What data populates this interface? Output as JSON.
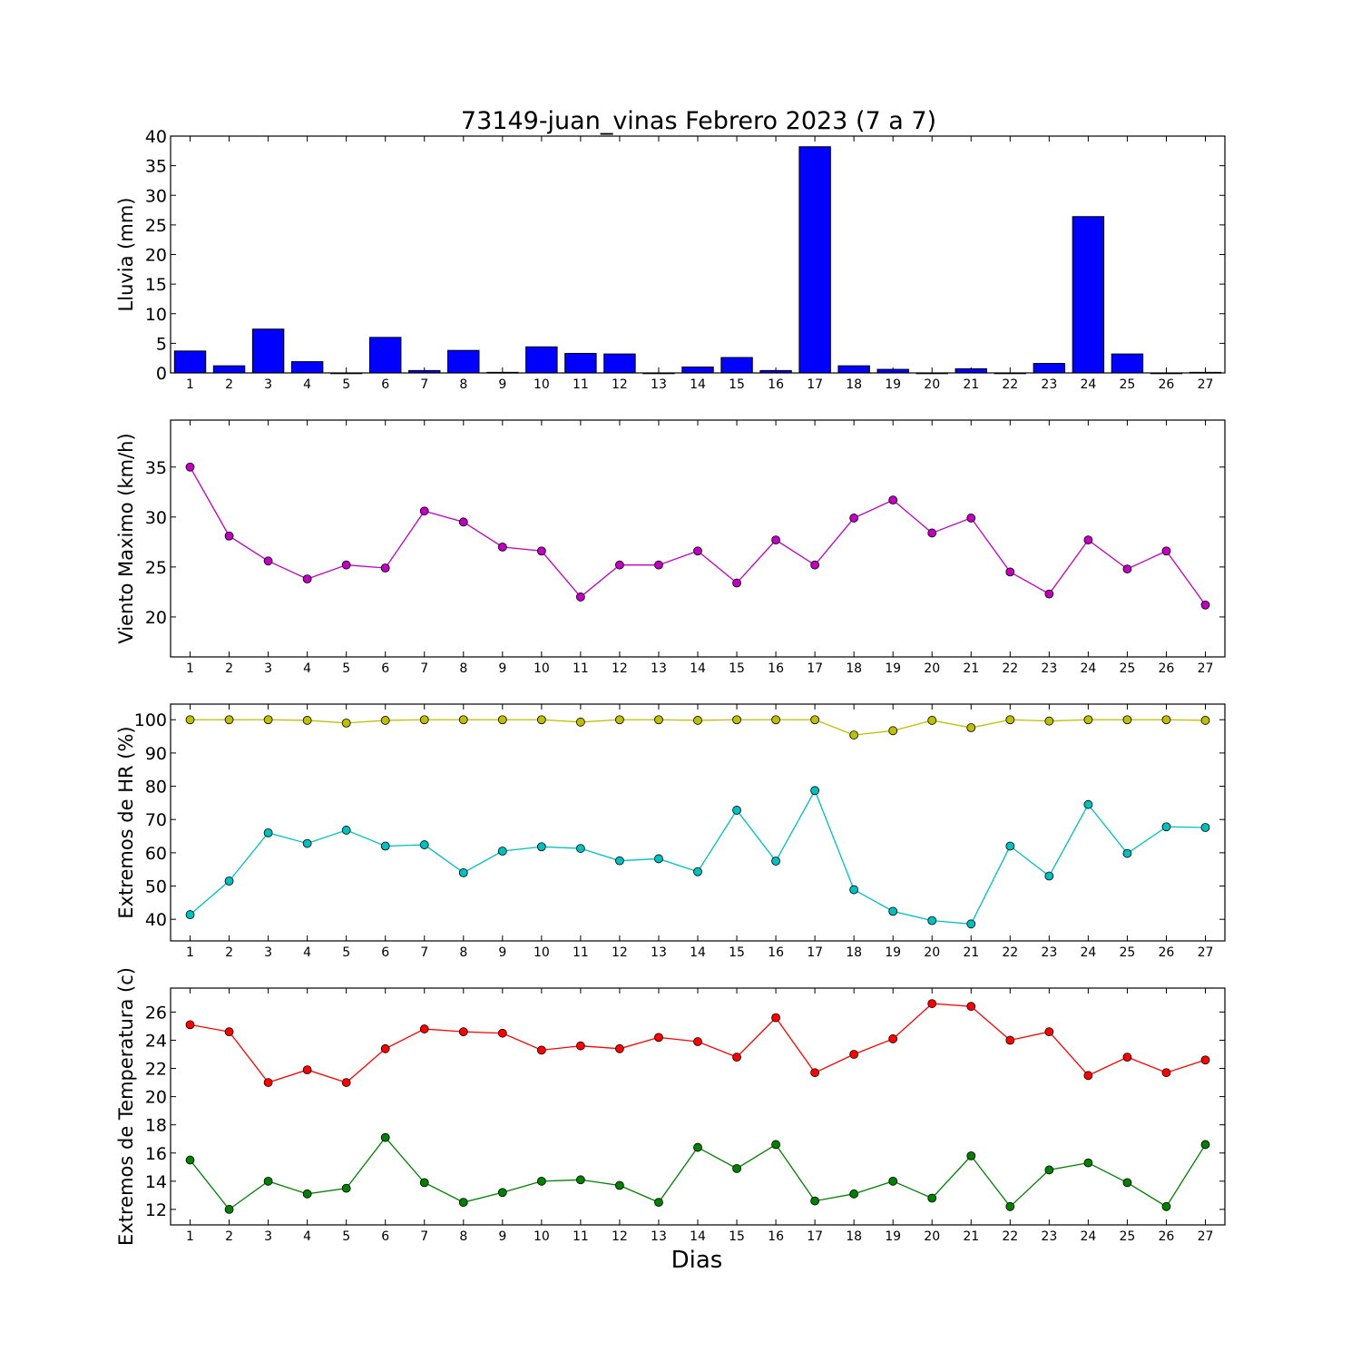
{
  "title": "73149-juan_vinas Febrero 2023  (7 a 7)",
  "xlabel": "Dias",
  "chart_data": [
    {
      "type": "bar",
      "ylabel": "Lluvia (mm)",
      "x": [
        1,
        2,
        3,
        4,
        5,
        6,
        7,
        8,
        9,
        10,
        11,
        12,
        13,
        14,
        15,
        16,
        17,
        18,
        19,
        20,
        21,
        22,
        23,
        24,
        25,
        26,
        27
      ],
      "xlim": [
        0.5,
        27.5
      ],
      "ylim": [
        0,
        40
      ],
      "yticks": [
        0,
        5,
        10,
        15,
        20,
        25,
        30,
        35,
        40
      ],
      "series": [
        {
          "color": "#0000ff",
          "values": [
            3.7,
            1.2,
            7.4,
            1.9,
            0,
            6,
            0.4,
            3.8,
            0.1,
            4.4,
            3.3,
            3.2,
            0,
            1.0,
            2.6,
            0.4,
            38.2,
            1.2,
            0.6,
            0,
            0.7,
            0,
            1.6,
            26.4,
            3.2,
            0,
            0.1
          ]
        }
      ]
    },
    {
      "type": "line",
      "ylabel": "Viento Maximo (km/h)",
      "x": [
        1,
        2,
        3,
        4,
        5,
        6,
        7,
        8,
        9,
        10,
        11,
        12,
        13,
        14,
        15,
        16,
        17,
        18,
        19,
        20,
        21,
        22,
        23,
        24,
        25,
        26,
        27
      ],
      "xlim": [
        0.5,
        27.5
      ],
      "ylim": [
        16,
        39.7
      ],
      "yticks": [
        20,
        25,
        30,
        35
      ],
      "series": [
        {
          "color": "#bf00bf",
          "values": [
            35,
            28.1,
            25.6,
            23.8,
            25.2,
            24.9,
            30.6,
            29.5,
            27.0,
            26.6,
            22.0,
            25.2,
            25.2,
            26.6,
            23.4,
            27.7,
            25.2,
            29.9,
            31.7,
            28.4,
            29.9,
            24.5,
            22.3,
            27.7,
            24.8,
            26.6,
            21.2
          ]
        }
      ]
    },
    {
      "type": "line",
      "ylabel": "Extremos de HR (%)",
      "x": [
        1,
        2,
        3,
        4,
        5,
        6,
        7,
        8,
        9,
        10,
        11,
        12,
        13,
        14,
        15,
        16,
        17,
        18,
        19,
        20,
        21,
        22,
        23,
        24,
        25,
        26,
        27
      ],
      "xlim": [
        0.5,
        27.5
      ],
      "ylim": [
        33.5,
        104.7
      ],
      "yticks": [
        40,
        50,
        60,
        70,
        80,
        90,
        100
      ],
      "series": [
        {
          "color": "#bfbf00",
          "values": [
            100,
            100,
            100,
            99.8,
            99,
            99.8,
            100,
            100,
            100,
            100,
            99.3,
            100,
            100,
            99.8,
            100,
            100,
            100,
            95.4,
            96.7,
            99.8,
            97.6,
            100,
            99.6,
            100,
            100,
            100,
            99.8
          ]
        },
        {
          "color": "#00bfbf",
          "values": [
            41.4,
            51.5,
            66,
            62.8,
            66.8,
            62,
            62.4,
            54,
            60.5,
            61.8,
            61.3,
            57.6,
            58.2,
            54.3,
            72.8,
            57.5,
            78.7,
            48.9,
            42.4,
            39.6,
            38.6,
            62,
            53,
            74.5,
            59.8,
            67.8,
            67.6
          ]
        }
      ]
    },
    {
      "type": "line",
      "ylabel": "Extremos de Temperatura (c)",
      "x": [
        1,
        2,
        3,
        4,
        5,
        6,
        7,
        8,
        9,
        10,
        11,
        12,
        13,
        14,
        15,
        16,
        17,
        18,
        19,
        20,
        21,
        22,
        23,
        24,
        25,
        26,
        27
      ],
      "xlim": [
        0.5,
        27.5
      ],
      "ylim": [
        10.9,
        27.7
      ],
      "yticks": [
        12,
        14,
        16,
        18,
        20,
        22,
        24,
        26
      ],
      "series": [
        {
          "color": "#ff0000",
          "values": [
            25.1,
            24.6,
            21.0,
            21.9,
            21.0,
            23.4,
            24.8,
            24.6,
            24.5,
            23.3,
            23.6,
            23.4,
            24.2,
            23.9,
            22.8,
            25.6,
            21.7,
            23.0,
            24.1,
            26.6,
            26.4,
            24.0,
            24.6,
            21.5,
            22.8,
            21.7,
            22.6
          ]
        },
        {
          "color": "#007f00",
          "values": [
            15.5,
            12.0,
            14.0,
            13.1,
            13.5,
            17.1,
            13.9,
            12.5,
            13.2,
            14.0,
            14.1,
            13.7,
            12.5,
            16.4,
            14.9,
            16.6,
            12.6,
            13.1,
            14.0,
            12.8,
            15.8,
            12.2,
            14.8,
            15.3,
            13.9,
            12.2,
            16.6
          ]
        }
      ]
    }
  ]
}
